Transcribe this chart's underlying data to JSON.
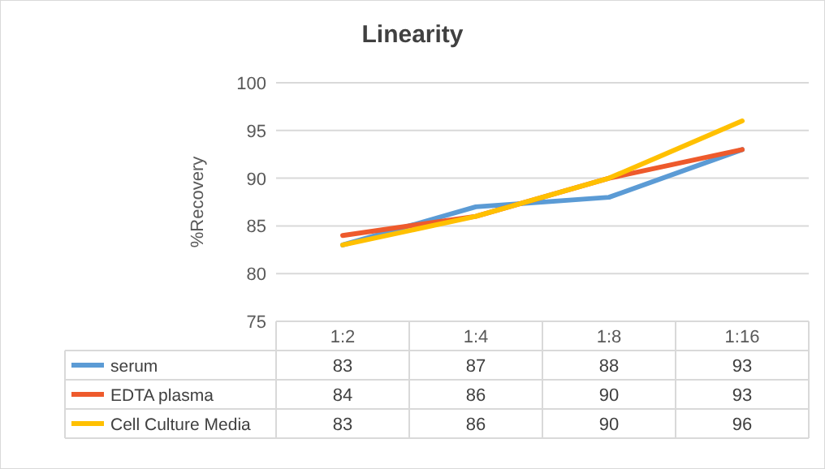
{
  "chart_data": {
    "type": "line",
    "title": "Linearity",
    "ylabel": "%Recovery",
    "categories": [
      "1:2",
      "1:4",
      "1:8",
      "1:16"
    ],
    "series": [
      {
        "name": "serum",
        "color": "#5b9bd5",
        "values": [
          83,
          87,
          88,
          93
        ]
      },
      {
        "name": "EDTA plasma",
        "color": "#ee5a2c",
        "values": [
          84,
          86,
          90,
          93
        ]
      },
      {
        "name": "Cell Culture Media",
        "color": "#ffc000",
        "values": [
          83,
          86,
          90,
          96
        ]
      }
    ],
    "ylim": [
      75,
      100
    ],
    "yticks": [
      75,
      80,
      85,
      90,
      95,
      100
    ],
    "grid": "y",
    "legend": "bottom",
    "data_labels": true,
    "marker": "none",
    "line_style": "solid"
  }
}
